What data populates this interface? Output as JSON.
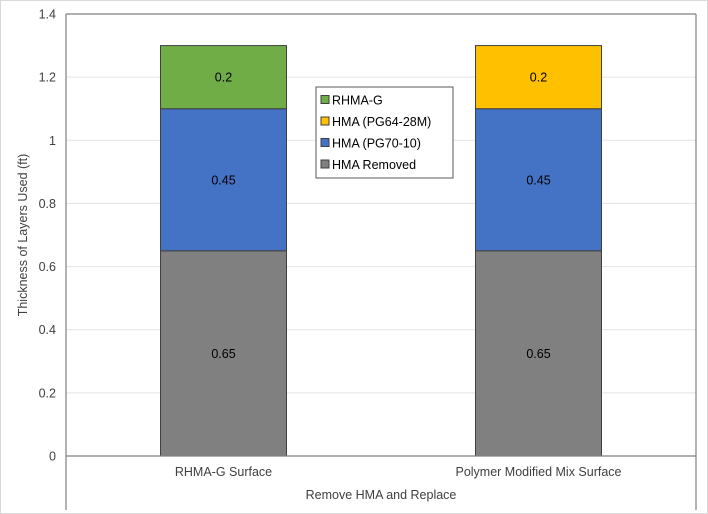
{
  "chart_data": {
    "type": "bar",
    "stacked": true,
    "title": "",
    "xlabel": "Remove HMA and Replace",
    "ylabel": "Thickness of Layers Used (ft)",
    "ylim": [
      0,
      1.4
    ],
    "yticks": [
      "0",
      "0.2",
      "0.4",
      "0.6",
      "0.8",
      "1",
      "1.2",
      "1.4"
    ],
    "ytick_values": [
      0,
      0.2,
      0.4,
      0.6,
      0.8,
      1.0,
      1.2,
      1.4
    ],
    "grid": true,
    "legend_position": "top-center",
    "categories": [
      "RHMA-G Surface",
      "Polymer Modified Mix Surface"
    ],
    "series": [
      {
        "name": "HMA Removed",
        "color": "#808080",
        "values": [
          0.65,
          0.65
        ],
        "labels": [
          "0.65",
          "0.65"
        ]
      },
      {
        "name": "HMA (PG70-10)",
        "color": "#4472c4",
        "values": [
          0.45,
          0.45
        ],
        "labels": [
          "0.45",
          "0.45"
        ]
      },
      {
        "name": "HMA (PG64-28M)",
        "color": "#ffc000",
        "values": [
          0,
          0.2
        ],
        "labels": [
          "",
          "0.2"
        ]
      },
      {
        "name": "RHMA-G",
        "color": "#70ad47",
        "values": [
          0.2,
          0
        ],
        "labels": [
          "0.2",
          ""
        ]
      }
    ],
    "legend_order": [
      "RHMA-G",
      "HMA (PG64-28M)",
      "HMA (PG70-10)",
      "HMA Removed"
    ]
  }
}
